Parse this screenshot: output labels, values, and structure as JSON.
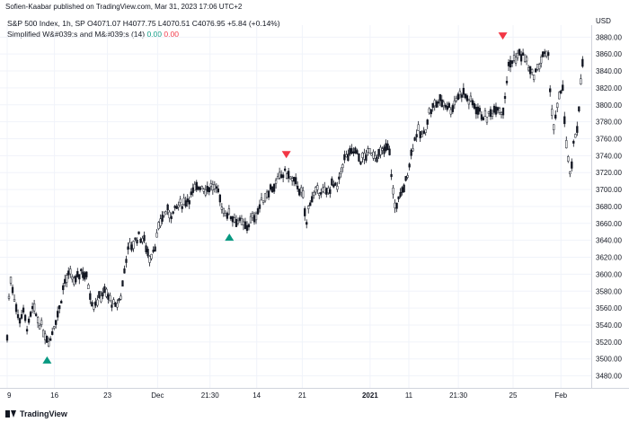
{
  "header": {
    "published": "Sofien-Kaabar published on TradingView.com, Mar 31, 2023 17:06 UTC+2"
  },
  "legend": {
    "symbol_line": "S&P 500 Index, 1h, SP  O4071.07  H4077.75  L4070.51  C4076.95  +5.84 (+0.14%)",
    "indicator_name": "Simplified W&#039;s and M&#039;s (14)",
    "indicator_value_1": "0.00",
    "indicator_value_2": "0.00"
  },
  "currency": "USD",
  "footer": {
    "brand": "TradingView"
  },
  "chart_data": {
    "type": "candlestick",
    "y_ticks": [
      3480,
      3500,
      3520,
      3540,
      3560,
      3580,
      3600,
      3620,
      3640,
      3660,
      3680,
      3700,
      3720,
      3740,
      3760,
      3780,
      3800,
      3820,
      3840,
      3860,
      3880
    ],
    "ylim": [
      3470,
      3892
    ],
    "x_ticks": [
      {
        "label": "9",
        "pos": 0.0
      },
      {
        "label": "16",
        "pos": 0.083
      },
      {
        "label": "23",
        "pos": 0.176
      },
      {
        "label": "Dec",
        "pos": 0.264
      },
      {
        "label": "21:30",
        "pos": 0.356
      },
      {
        "label": "14",
        "pos": 0.438
      },
      {
        "label": "21",
        "pos": 0.518
      },
      {
        "label": "2021",
        "pos": 0.637
      },
      {
        "label": "11",
        "pos": 0.705
      },
      {
        "label": "21:30",
        "pos": 0.792
      },
      {
        "label": "25",
        "pos": 0.888
      },
      {
        "label": "Feb",
        "pos": 0.972
      }
    ],
    "path": [
      [
        0.0,
        3525
      ],
      [
        0.005,
        3600
      ],
      [
        0.012,
        3575
      ],
      [
        0.02,
        3545
      ],
      [
        0.028,
        3555
      ],
      [
        0.036,
        3535
      ],
      [
        0.045,
        3560
      ],
      [
        0.055,
        3545
      ],
      [
        0.066,
        3530
      ],
      [
        0.075,
        3520
      ],
      [
        0.082,
        3540
      ],
      [
        0.092,
        3560
      ],
      [
        0.1,
        3590
      ],
      [
        0.11,
        3600
      ],
      [
        0.12,
        3590
      ],
      [
        0.13,
        3605
      ],
      [
        0.14,
        3595
      ],
      [
        0.15,
        3565
      ],
      [
        0.16,
        3570
      ],
      [
        0.17,
        3580
      ],
      [
        0.18,
        3570
      ],
      [
        0.19,
        3560
      ],
      [
        0.2,
        3575
      ],
      [
        0.21,
        3625
      ],
      [
        0.22,
        3635
      ],
      [
        0.23,
        3645
      ],
      [
        0.24,
        3640
      ],
      [
        0.25,
        3620
      ],
      [
        0.26,
        3635
      ],
      [
        0.27,
        3665
      ],
      [
        0.28,
        3675
      ],
      [
        0.29,
        3670
      ],
      [
        0.3,
        3680
      ],
      [
        0.31,
        3685
      ],
      [
        0.32,
        3690
      ],
      [
        0.33,
        3700
      ],
      [
        0.34,
        3705
      ],
      [
        0.35,
        3700
      ],
      [
        0.36,
        3705
      ],
      [
        0.37,
        3695
      ],
      [
        0.38,
        3675
      ],
      [
        0.39,
        3670
      ],
      [
        0.4,
        3665
      ],
      [
        0.41,
        3660
      ],
      [
        0.42,
        3655
      ],
      [
        0.43,
        3665
      ],
      [
        0.44,
        3675
      ],
      [
        0.45,
        3690
      ],
      [
        0.46,
        3700
      ],
      [
        0.47,
        3705
      ],
      [
        0.48,
        3715
      ],
      [
        0.49,
        3720
      ],
      [
        0.5,
        3710
      ],
      [
        0.51,
        3705
      ],
      [
        0.52,
        3690
      ],
      [
        0.525,
        3655
      ],
      [
        0.53,
        3685
      ],
      [
        0.54,
        3695
      ],
      [
        0.55,
        3700
      ],
      [
        0.56,
        3695
      ],
      [
        0.57,
        3705
      ],
      [
        0.58,
        3700
      ],
      [
        0.59,
        3735
      ],
      [
        0.6,
        3740
      ],
      [
        0.61,
        3745
      ],
      [
        0.62,
        3735
      ],
      [
        0.63,
        3740
      ],
      [
        0.64,
        3745
      ],
      [
        0.65,
        3740
      ],
      [
        0.66,
        3745
      ],
      [
        0.67,
        3750
      ],
      [
        0.68,
        3680
      ],
      [
        0.69,
        3690
      ],
      [
        0.7,
        3710
      ],
      [
        0.71,
        3745
      ],
      [
        0.72,
        3770
      ],
      [
        0.73,
        3760
      ],
      [
        0.74,
        3790
      ],
      [
        0.75,
        3800
      ],
      [
        0.76,
        3805
      ],
      [
        0.77,
        3800
      ],
      [
        0.78,
        3795
      ],
      [
        0.79,
        3810
      ],
      [
        0.8,
        3815
      ],
      [
        0.81,
        3805
      ],
      [
        0.82,
        3800
      ],
      [
        0.83,
        3790
      ],
      [
        0.84,
        3785
      ],
      [
        0.85,
        3790
      ],
      [
        0.86,
        3800
      ],
      [
        0.87,
        3790
      ],
      [
        0.88,
        3845
      ],
      [
        0.89,
        3855
      ],
      [
        0.9,
        3860
      ],
      [
        0.91,
        3855
      ],
      [
        0.92,
        3835
      ],
      [
        0.93,
        3840
      ],
      [
        0.94,
        3860
      ],
      [
        0.95,
        3855
      ],
      [
        0.955,
        3800
      ],
      [
        0.96,
        3770
      ],
      [
        0.965,
        3795
      ],
      [
        0.97,
        3810
      ],
      [
        0.975,
        3825
      ],
      [
        0.98,
        3760
      ],
      [
        0.985,
        3730
      ],
      [
        0.99,
        3715
      ],
      [
        0.995,
        3760
      ],
      [
        1.0,
        3770
      ],
      [
        1.005,
        3810
      ],
      [
        1.01,
        3850
      ]
    ],
    "signals": [
      {
        "type": "buy",
        "x_pos": 0.07,
        "price": 3520
      },
      {
        "type": "buy",
        "x_pos": 0.39,
        "price": 3665
      },
      {
        "type": "sell",
        "x_pos": 0.49,
        "price": 3720
      },
      {
        "type": "sell",
        "x_pos": 0.87,
        "price": 3860
      }
    ],
    "colors": {
      "candle": "#131722",
      "buy": "#089981",
      "sell": "#f23645",
      "grid": "#f0f3fa"
    }
  }
}
